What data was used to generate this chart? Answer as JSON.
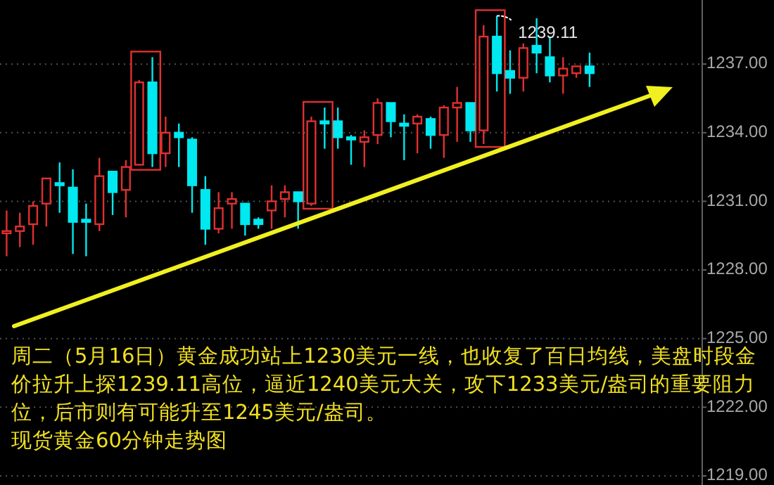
{
  "chart_data": {
    "type": "candlestick",
    "categories": [
      null,
      null,
      null,
      null,
      null,
      null,
      null,
      null,
      null,
      null,
      null,
      null,
      null,
      null,
      null,
      null,
      null,
      null,
      null,
      null,
      null,
      null,
      null,
      null,
      null,
      null,
      null,
      null,
      null,
      null,
      null,
      null,
      null,
      null,
      null,
      null,
      null,
      null,
      null,
      null,
      null,
      null,
      null,
      null,
      null,
      null,
      null,
      null,
      null,
      null,
      null,
      null,
      null
    ],
    "ohlc": [
      [
        1229.6,
        1230.6,
        1228.6,
        1229.7
      ],
      [
        1229.7,
        1230.5,
        1229.0,
        1229.9
      ],
      [
        1230.0,
        1231.0,
        1229.1,
        1230.8
      ],
      [
        1230.9,
        1232.0,
        1229.9,
        1232.0
      ],
      [
        1231.8,
        1232.7,
        1230.5,
        1231.7
      ],
      [
        1231.6,
        1232.4,
        1228.7,
        1230.1
      ],
      [
        1230.2,
        1230.9,
        1228.6,
        1230.1
      ],
      [
        1230.0,
        1232.9,
        1229.7,
        1232.1
      ],
      [
        1232.3,
        1232.3,
        1230.4,
        1231.4
      ],
      [
        1231.5,
        1232.8,
        1230.3,
        1232.5
      ],
      [
        1232.6,
        1236.3,
        1232.6,
        1236.2
      ],
      [
        1236.2,
        1237.3,
        1232.5,
        1233.1
      ],
      [
        1233.1,
        1234.7,
        1232.5,
        1234.0
      ],
      [
        1234.0,
        1234.4,
        1232.5,
        1233.8
      ],
      [
        1233.7,
        1233.8,
        1230.5,
        1231.7
      ],
      [
        1231.5,
        1232.1,
        1229.1,
        1229.8
      ],
      [
        1229.8,
        1231.4,
        1229.6,
        1230.7
      ],
      [
        1230.9,
        1231.4,
        1229.8,
        1231.1
      ],
      [
        1230.9,
        1230.9,
        1229.5,
        1230.0
      ],
      [
        1230.2,
        1230.3,
        1229.8,
        1230.0
      ],
      [
        1230.6,
        1231.7,
        1229.8,
        1231.0
      ],
      [
        1231.1,
        1231.7,
        1230.3,
        1231.4
      ],
      [
        1231.4,
        1231.4,
        1229.8,
        1231.0
      ],
      [
        1230.9,
        1234.7,
        1230.8,
        1234.5
      ],
      [
        1234.5,
        1235.1,
        1233.3,
        1234.4
      ],
      [
        1234.5,
        1235.1,
        1233.3,
        1233.8
      ],
      [
        1233.8,
        1233.9,
        1232.6,
        1233.7
      ],
      [
        1233.6,
        1234.1,
        1232.5,
        1233.8
      ],
      [
        1233.9,
        1235.5,
        1233.5,
        1235.3
      ],
      [
        1235.3,
        1235.3,
        1233.8,
        1234.5
      ],
      [
        1234.4,
        1234.8,
        1232.8,
        1234.3
      ],
      [
        1234.4,
        1234.8,
        1233.1,
        1234.7
      ],
      [
        1234.6,
        1234.7,
        1233.3,
        1233.9
      ],
      [
        1233.9,
        1235.2,
        1232.9,
        1235.1
      ],
      [
        1235.1,
        1236.0,
        1233.6,
        1235.3
      ],
      [
        1235.3,
        1235.3,
        1233.6,
        1234.1
      ],
      [
        1234.1,
        1238.7,
        1233.5,
        1238.2
      ],
      [
        1238.2,
        1239.11,
        1235.8,
        1236.6
      ],
      [
        1236.7,
        1237.6,
        1235.7,
        1236.4
      ],
      [
        1236.4,
        1237.9,
        1235.8,
        1237.7
      ],
      [
        1237.8,
        1239.0,
        1236.6,
        1237.5
      ],
      [
        1237.3,
        1238.2,
        1236.2,
        1236.5
      ],
      [
        1236.5,
        1237.3,
        1235.7,
        1236.8
      ],
      [
        1236.6,
        1236.9,
        1236.4,
        1236.9
      ],
      [
        1236.9,
        1237.5,
        1236.0,
        1236.6
      ],
      null,
      null,
      null,
      null,
      null,
      null,
      null,
      null
    ],
    "colors": [
      "#e03030",
      "#e03030",
      "#e03030",
      "#e03030",
      "#00e8f0",
      "#00e8f0",
      "#00e8f0",
      "#e03030",
      "#00e8f0",
      "#e03030",
      "#e03030",
      "#00e8f0",
      "#e03030",
      "#00e8f0",
      "#00e8f0",
      "#00e8f0",
      "#e03030",
      "#e03030",
      "#00e8f0",
      "#00e8f0",
      "#e03030",
      "#e03030",
      "#00e8f0",
      "#e03030",
      "#00e8f0",
      "#00e8f0",
      "#00e8f0",
      "#e03030",
      "#e03030",
      "#00e8f0",
      "#00e8f0",
      "#e03030",
      "#00e8f0",
      "#e03030",
      "#e03030",
      "#00e8f0",
      "#e03030",
      "#00e8f0",
      "#00e8f0",
      "#e03030",
      "#00e8f0",
      "#00e8f0",
      "#e03030",
      "#e03030",
      "#00e8f0",
      null,
      null,
      null,
      null,
      null,
      null,
      null,
      null
    ],
    "ylim": [
      1218.6,
      1239.8
    ],
    "yticks": [
      {
        "value": 1219,
        "label": "1219.00"
      },
      {
        "value": 1222,
        "label": "1222.00"
      },
      {
        "value": 1225,
        "label": "1225.00"
      },
      {
        "value": 1228,
        "label": "1228.00"
      },
      {
        "value": 1231,
        "label": "1231.00"
      },
      {
        "value": 1234,
        "label": "1234.00"
      },
      {
        "value": 1237,
        "label": "1237.00"
      }
    ],
    "grid": "y",
    "tick_labels": "y",
    "annotations": [
      "1239.11",
      "周二（5月16日）黄金成功站上1230美元一线，也收复了百日均线，美盘时段金价拉升上探1239.11高位，逼近1240美元大关，攻下1233美元/盎司的重要阻力位，后市则有可能升至1245美元/盎司。",
      "现货黄金60分钟走势图"
    ]
  }
}
